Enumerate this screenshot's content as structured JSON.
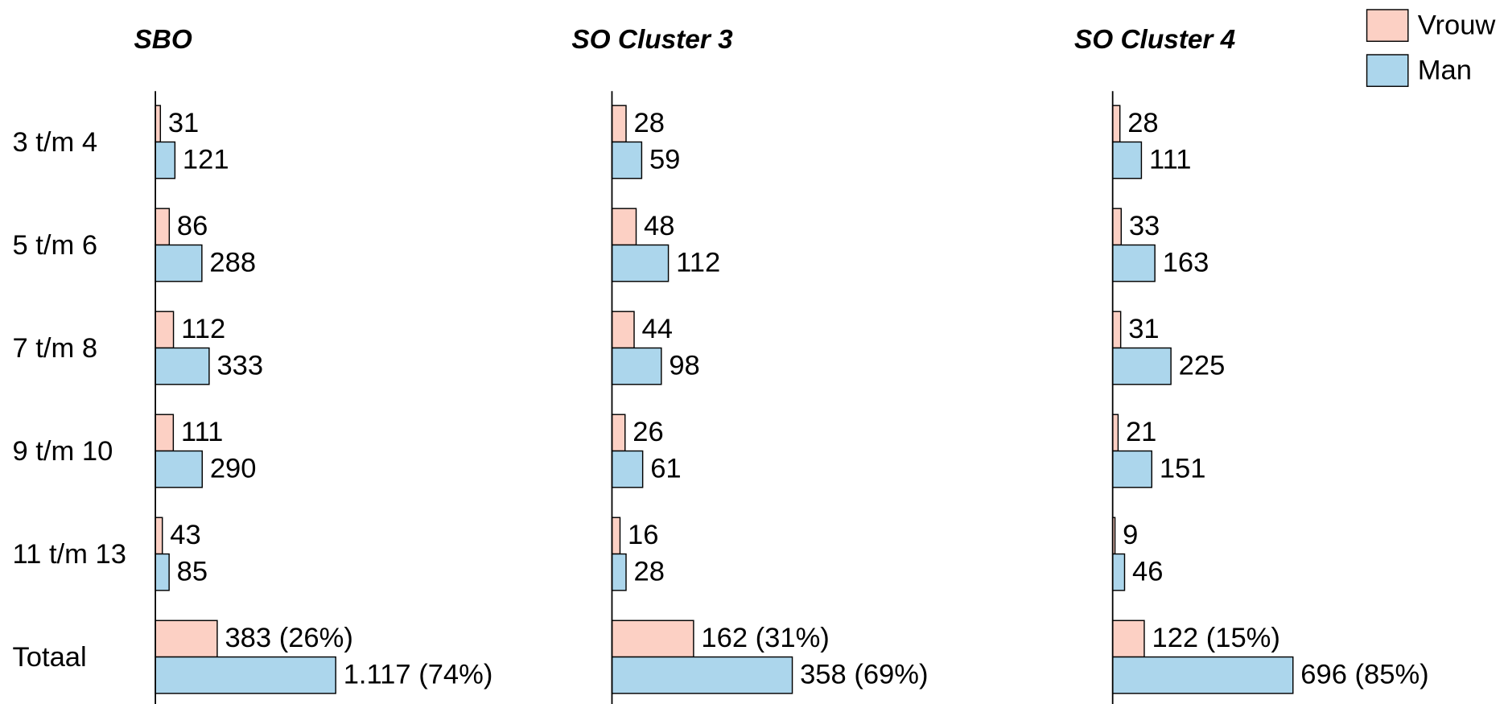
{
  "chart_data": {
    "type": "bar",
    "orientation": "horizontal",
    "categories": [
      "3 t/m 4",
      "5 t/m 6",
      "7 t/m 8",
      "9 t/m 10",
      "11 t/m 13",
      "Totaal"
    ],
    "series": [
      {
        "name": "Vrouw",
        "color": "#fcd0c4"
      },
      {
        "name": "Man",
        "color": "#acd6ec"
      }
    ],
    "legend": "top-right",
    "panels": [
      {
        "title": "SBO",
        "series": [
          {
            "values": [
              31,
              86,
              112,
              111,
              43,
              383
            ],
            "value_labels": [
              "31",
              "86",
              "112",
              "111",
              "43",
              "383 (26%)"
            ]
          },
          {
            "values": [
              121,
              288,
              333,
              290,
              85,
              1117
            ],
            "value_labels": [
              "121",
              "288",
              "333",
              "290",
              "85",
              "1.117 (74%)"
            ]
          }
        ]
      },
      {
        "title": "SO Cluster 3",
        "series": [
          {
            "values": [
              28,
              48,
              44,
              26,
              16,
              162
            ],
            "value_labels": [
              "28",
              "48",
              "44",
              "26",
              "16",
              "162 (31%)"
            ]
          },
          {
            "values": [
              59,
              112,
              98,
              61,
              28,
              358
            ],
            "value_labels": [
              "59",
              "112",
              "98",
              "61",
              "28",
              "358 (69%)"
            ]
          }
        ]
      },
      {
        "title": "SO Cluster 4",
        "series": [
          {
            "values": [
              28,
              33,
              31,
              21,
              9,
              122
            ],
            "value_labels": [
              "28",
              "33",
              "31",
              "21",
              "9",
              "122 (15%)"
            ]
          },
          {
            "values": [
              111,
              163,
              225,
              151,
              46,
              696
            ],
            "value_labels": [
              "111",
              "163",
              "225",
              "151",
              "46",
              "696 (85%)"
            ]
          }
        ]
      }
    ]
  }
}
